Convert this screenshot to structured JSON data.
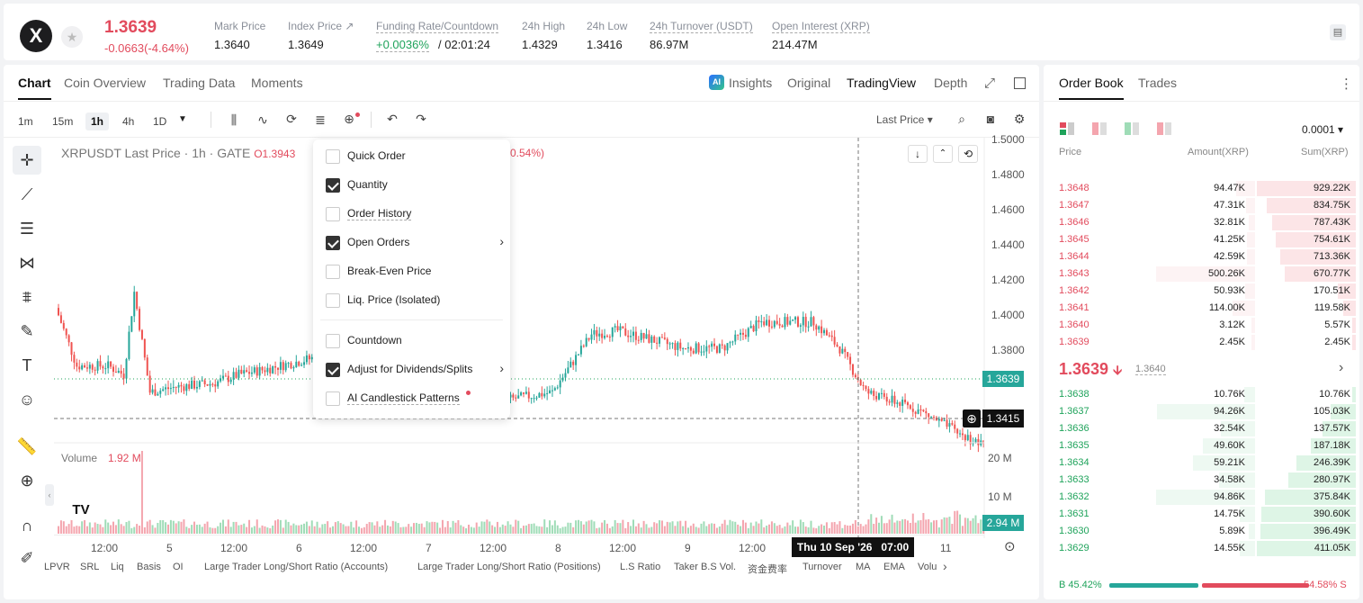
{
  "header": {
    "coin_logo": "X",
    "price": "1.3639",
    "change": "-0.0663(-4.64%)",
    "stats": [
      {
        "label": "Mark Price",
        "value": "1.3640"
      },
      {
        "label": "Index Price ↗",
        "value": "1.3649"
      },
      {
        "label": "Funding Rate/Countdown",
        "value_green": "+0.0036%",
        "value": "/ 02:01:24"
      },
      {
        "label": "24h High",
        "value": "1.4329"
      },
      {
        "label": "24h Low",
        "value": "1.3416"
      },
      {
        "label": "24h Turnover (USDT)",
        "value": "86.97M"
      },
      {
        "label": "Open Interest (XRP)",
        "value": "214.47M"
      }
    ]
  },
  "chart_tabs": [
    "Chart",
    "Coin Overview",
    "Trading Data",
    "Moments"
  ],
  "view_tabs": {
    "insights": "Insights",
    "original": "Original",
    "tradingview": "TradingView",
    "depth": "Depth"
  },
  "timeframes": [
    "1m",
    "15m",
    "1h",
    "4h",
    "1D"
  ],
  "price_type": "Last Price",
  "legend": {
    "symbol": "XRPUSDT Last Price · 1h · GATE",
    "open": "O1.3943",
    "pct": "0.54%)"
  },
  "menu": [
    {
      "label": "Quick Order",
      "checked": false
    },
    {
      "label": "Quantity",
      "checked": true
    },
    {
      "label": "Order History",
      "checked": false
    },
    {
      "label": "Open Orders",
      "checked": true
    },
    {
      "label": "Break-Even Price",
      "checked": false
    },
    {
      "label": "Liq. Price (Isolated)",
      "checked": false
    },
    {
      "label": "Countdown",
      "checked": false
    },
    {
      "label": "Adjust for Dividends/Splits",
      "checked": true
    },
    {
      "label": "AI Candlestick Patterns",
      "checked": false
    }
  ],
  "y_ticks": [
    "1.5000",
    "1.4800",
    "1.4600",
    "1.4400",
    "1.4200",
    "1.4000",
    "1.3800",
    "1.3639",
    "1.3415"
  ],
  "volume": {
    "label": "Volume",
    "value": "1.92 M",
    "ticks": [
      "20 M",
      "10 M"
    ],
    "last": "2.94 M"
  },
  "x_ticks": [
    "12:00",
    "5",
    "12:00",
    "6",
    "12:00",
    "7",
    "12:00",
    "8",
    "12:00",
    "9",
    "12:00",
    "11"
  ],
  "crosshair_time": "Thu 10 Sep '26   07:00",
  "indicators": [
    "LPVR",
    "SRL",
    "Liq",
    "Basis",
    "OI",
    "Large Trader Long/Short Ratio (Accounts)",
    "Large Trader Long/Short Ratio (Positions)",
    "L.S Ratio",
    "Taker B.S Vol.",
    "资金费率",
    "Turnover",
    "MA",
    "EMA",
    "Volu"
  ],
  "book": {
    "tabs": [
      "Order Book",
      "Trades"
    ],
    "precision": "0.0001",
    "cols": [
      "Price",
      "Amount(XRP)",
      "Sum(XRP)"
    ],
    "asks": [
      [
        "1.3648",
        "94.47K",
        "929.22K"
      ],
      [
        "1.3647",
        "47.31K",
        "834.75K"
      ],
      [
        "1.3646",
        "32.81K",
        "787.43K"
      ],
      [
        "1.3645",
        "41.25K",
        "754.61K"
      ],
      [
        "1.3644",
        "42.59K",
        "713.36K"
      ],
      [
        "1.3643",
        "500.26K",
        "670.77K"
      ],
      [
        "1.3642",
        "50.93K",
        "170.51K"
      ],
      [
        "1.3641",
        "114.00K",
        "119.58K"
      ],
      [
        "1.3640",
        "3.12K",
        "5.57K"
      ],
      [
        "1.3639",
        "2.45K",
        "2.45K"
      ]
    ],
    "mid": "1.3639",
    "mid_arrow": "🡫",
    "mid_mark": "1.3640",
    "bids": [
      [
        "1.3638",
        "10.76K",
        "10.76K"
      ],
      [
        "1.3637",
        "94.26K",
        "105.03K"
      ],
      [
        "1.3636",
        "32.54K",
        "137.57K"
      ],
      [
        "1.3635",
        "49.60K",
        "187.18K"
      ],
      [
        "1.3634",
        "59.21K",
        "246.39K"
      ],
      [
        "1.3633",
        "34.58K",
        "280.97K"
      ],
      [
        "1.3632",
        "94.86K",
        "375.84K"
      ],
      [
        "1.3631",
        "14.75K",
        "390.60K"
      ],
      [
        "1.3630",
        "5.89K",
        "396.49K"
      ],
      [
        "1.3629",
        "14.55K",
        "411.05K"
      ]
    ],
    "buy_pct": "B 45.42%",
    "sell_pct": "54.58% S",
    "buy_ratio": 0.4542
  },
  "colors": {
    "up": "#26a69a",
    "down": "#ef5350",
    "red": "#e24b5d",
    "green": "#1fa35b"
  }
}
